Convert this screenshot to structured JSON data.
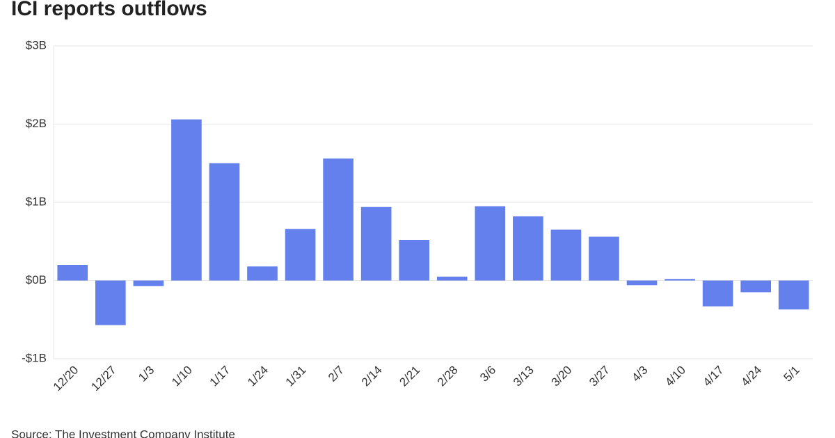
{
  "chart_data": {
    "type": "bar",
    "title": "ICI reports outflows",
    "source": "Source: The Investment Company Institute",
    "categories": [
      "12/20",
      "12/27",
      "1/3",
      "1/10",
      "1/17",
      "1/24",
      "1/31",
      "2/7",
      "2/14",
      "2/21",
      "2/28",
      "3/6",
      "3/13",
      "3/20",
      "3/27",
      "4/3",
      "4/10",
      "4/17",
      "4/24",
      "5/1"
    ],
    "values": [
      0.2,
      -0.57,
      -0.07,
      2.06,
      1.5,
      0.18,
      0.66,
      1.56,
      0.94,
      0.52,
      0.05,
      0.95,
      0.82,
      0.65,
      0.56,
      -0.06,
      0.02,
      -0.33,
      -0.15,
      -0.37
    ],
    "color": "#6480ec",
    "ylim": [
      -1,
      3
    ],
    "yticks": [
      {
        "value": -1,
        "label": "-$1B"
      },
      {
        "value": 0,
        "label": "$0B"
      },
      {
        "value": 1,
        "label": "$1B"
      },
      {
        "value": 2,
        "label": "$2B"
      },
      {
        "value": 3,
        "label": "$3B"
      }
    ],
    "grid": true
  }
}
